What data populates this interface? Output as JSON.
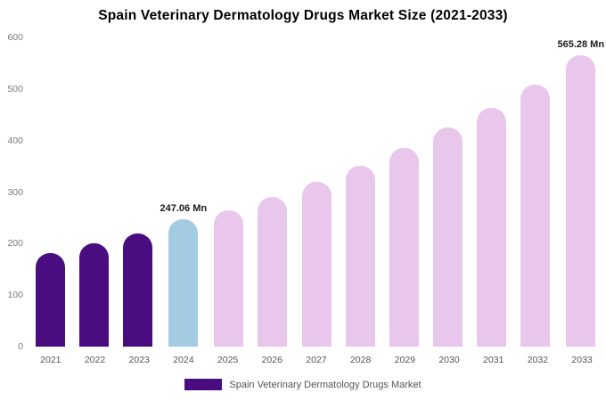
{
  "title": "Spain Veterinary Dermatology Drugs Market Size (2021-2033)",
  "legend": {
    "label": "Spain Veterinary Dermatology Drugs Market",
    "swatch_color": "#4a0d80"
  },
  "colors": {
    "historical": "#4a0d80",
    "current": "#a3cbe2",
    "forecast": "#e9c7ec",
    "title_text": "#000000",
    "tick_text": "#7a7a7a",
    "axis_label_text": "#555555",
    "background": "#ffffff"
  },
  "chart_data": {
    "type": "bar",
    "title": "Spain Veterinary Dermatology Drugs Market Size (2021-2033)",
    "xlabel": "",
    "ylabel": "",
    "categories": [
      "2021",
      "2022",
      "2023",
      "2024",
      "2025",
      "2026",
      "2027",
      "2028",
      "2029",
      "2030",
      "2031",
      "2032",
      "2033"
    ],
    "values": [
      182,
      200,
      220,
      247.06,
      265,
      291,
      320,
      351,
      385,
      425,
      464,
      509,
      565.28
    ],
    "bar_colors": [
      "#4a0d80",
      "#4a0d80",
      "#4a0d80",
      "#a3cbe2",
      "#e9c7ec",
      "#e9c7ec",
      "#e9c7ec",
      "#e9c7ec",
      "#e9c7ec",
      "#e9c7ec",
      "#e9c7ec",
      "#e9c7ec",
      "#e9c7ec"
    ],
    "annotations": {
      "2024": "247.06 Mn",
      "2033": "565.28 Mn"
    },
    "ylim": [
      0,
      600
    ],
    "yticks": [
      0,
      100,
      200,
      300,
      400,
      500,
      600
    ],
    "grid": false,
    "legend_position": "bottom",
    "legend_entries": [
      "Spain Veterinary Dermatology Drugs Market"
    ],
    "unit": "Mn"
  }
}
